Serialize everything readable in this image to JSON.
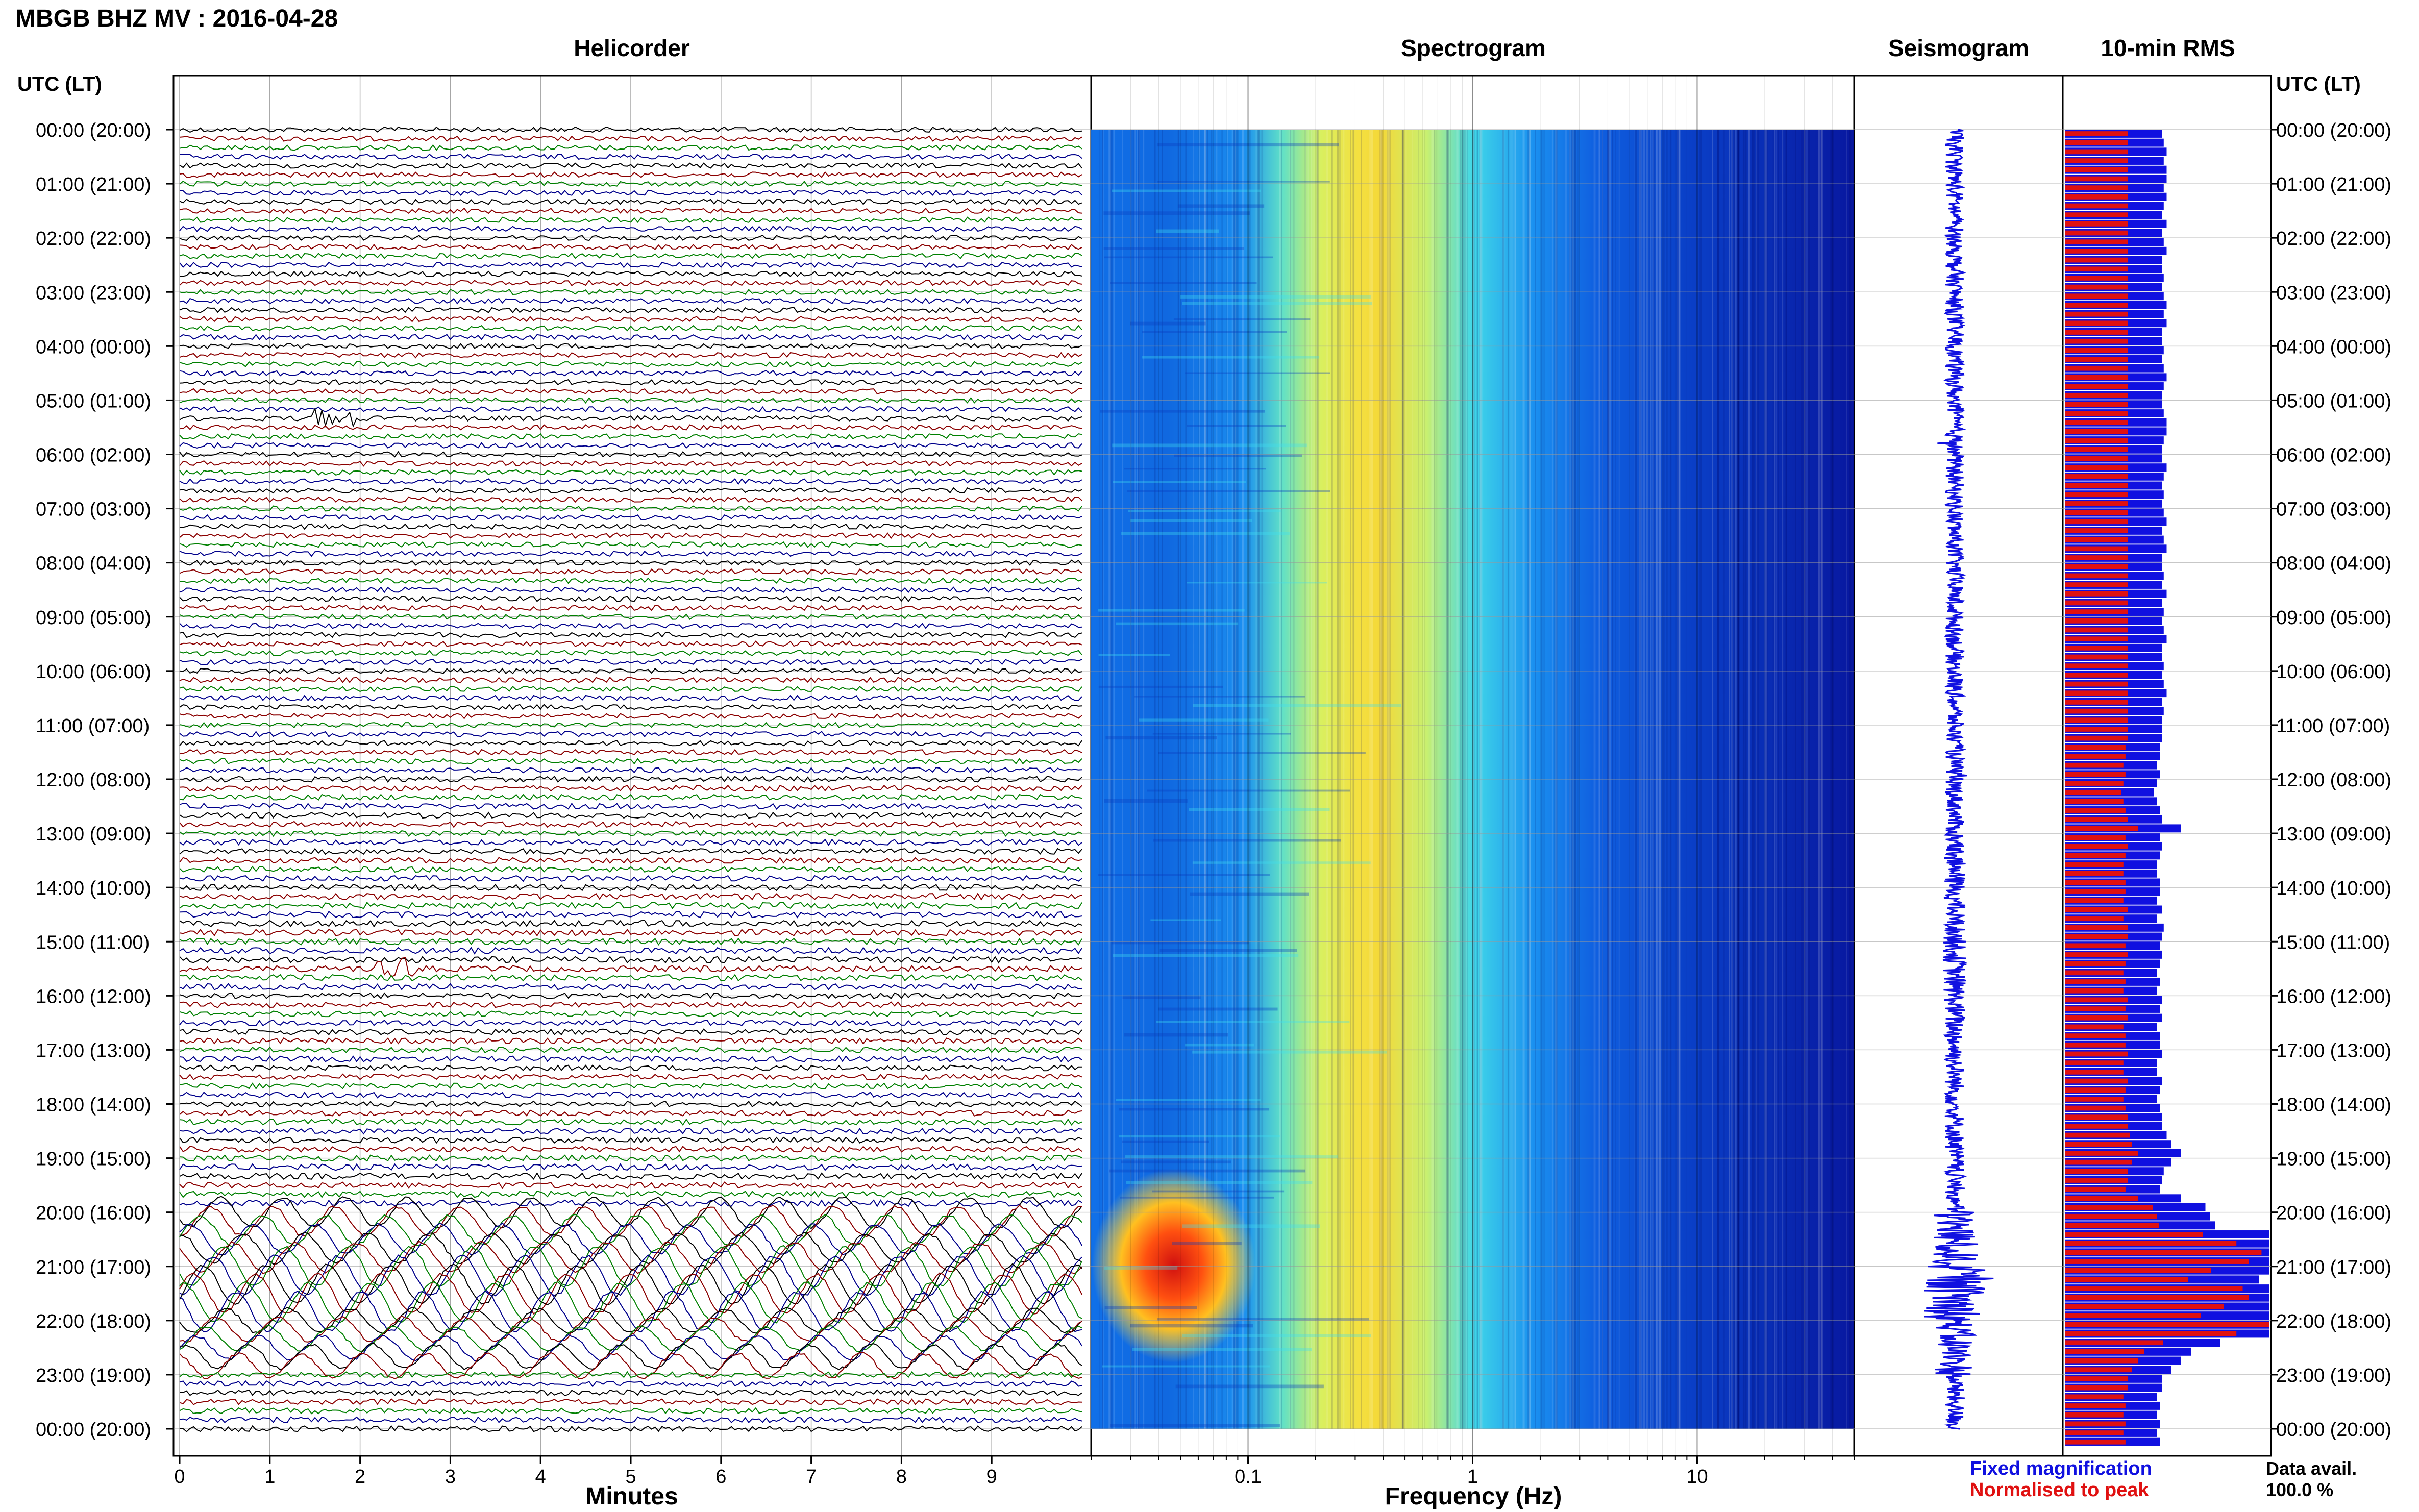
{
  "header": {
    "title": "MBGB BHZ MV : 2016-04-28",
    "time_axis_label": "UTC (LT)"
  },
  "panels": {
    "helicorder": "Helicorder",
    "spectrogram": "Spectrogram",
    "seismogram": "Seismogram",
    "rms": "10-min RMS"
  },
  "axes": {
    "helicorder_xlabel": "Minutes",
    "spectrogram_xlabel": "Frequency (Hz)"
  },
  "legend": {
    "fixed": "Fixed magnification",
    "normalised": "Normalised to peak",
    "fixed_color": "#1010e0",
    "normalised_color": "#e01010"
  },
  "data_avail": {
    "label": "Data avail.",
    "value": "100.0 %"
  },
  "colors": {
    "trace_cycle": [
      "#000000",
      "#8b0000",
      "#008000",
      "#00008b"
    ],
    "seismogram": "#1010e0",
    "rms_fixed": "#1010e0",
    "rms_normalised": "#e01010",
    "grid": "#999999"
  },
  "chart_data": [
    {
      "type": "line",
      "panel": "helicorder",
      "title": "Helicorder",
      "xlabel": "Minutes",
      "x_ticks": [
        "0",
        "1",
        "2",
        "3",
        "4",
        "5",
        "6",
        "7",
        "8",
        "9"
      ],
      "xlim": [
        0,
        10
      ],
      "y_ticks": [
        "00:00 (20:00)",
        "01:00 (21:00)",
        "02:00 (22:00)",
        "03:00 (23:00)",
        "04:00 (00:00)",
        "05:00 (01:00)",
        "06:00 (02:00)",
        "07:00 (03:00)",
        "08:00 (04:00)",
        "09:00 (05:00)",
        "10:00 (06:00)",
        "11:00 (07:00)",
        "12:00 (08:00)",
        "13:00 (09:00)",
        "14:00 (10:00)",
        "15:00 (11:00)",
        "16:00 (12:00)",
        "17:00 (13:00)",
        "18:00 (14:00)",
        "19:00 (15:00)",
        "20:00 (16:00)",
        "21:00 (17:00)",
        "22:00 (18:00)",
        "23:00 (19:00)",
        "00:00 (20:00)"
      ],
      "rows_per_hour": 6,
      "hours": 24,
      "relative_amplitude": [
        1.0,
        1.0,
        1.0,
        1.0,
        1.0,
        1.0,
        1.0,
        1.0,
        1.0,
        1.0,
        1.0,
        1.0,
        1.1,
        1.1,
        1.2,
        1.2,
        1.1,
        1.1,
        1.1,
        1.2,
        3.2,
        4.2,
        2.6,
        1.1
      ],
      "events": [
        {
          "time": "05:20",
          "minute": 1.7
        },
        {
          "time": "15:30",
          "minute": 2.4
        }
      ]
    },
    {
      "type": "heatmap",
      "panel": "spectrogram",
      "title": "Spectrogram",
      "xlabel": "Frequency (Hz)",
      "x_scale": "log",
      "xlim": [
        0.02,
        50
      ],
      "x_ticks": [
        "0.1",
        "1",
        "10"
      ],
      "energy_peak_hz": 0.33,
      "band_hz": [
        0.15,
        1.0
      ],
      "strong_lowfreq_event": {
        "start": "20:00",
        "end": "22:00",
        "freq_hz": [
          0.02,
          0.08
        ]
      },
      "colormap": [
        "#00008f",
        "#0000ff",
        "#00ffff",
        "#ffff00",
        "#ff0000",
        "#800000"
      ]
    },
    {
      "type": "line",
      "panel": "seismogram",
      "title": "Seismogram",
      "relative_amplitude": [
        1.0,
        1.0,
        1.0,
        1.0,
        1.0,
        1.0,
        1.0,
        1.0,
        1.0,
        1.0,
        1.0,
        1.0,
        1.0,
        1.2,
        1.2,
        1.3,
        1.2,
        1.1,
        1.1,
        1.1,
        2.6,
        3.4,
        2.2,
        1.1
      ]
    },
    {
      "type": "bar",
      "panel": "rms",
      "title": "10-min RMS",
      "bars_per_hour": 6,
      "series": [
        {
          "name": "Fixed magnification",
          "color": "#1010e0",
          "values": [
            1.0,
            1.02,
            1.05,
            1.02,
            1.05,
            1.05,
            1.02,
            1.05,
            1.02,
            1.0,
            1.05,
            1.0,
            1.02,
            1.05,
            1.0,
            1.0,
            1.02,
            1.0,
            1.02,
            1.05,
            1.02,
            1.05,
            1.0,
            1.0,
            1.02,
            1.0,
            1.02,
            1.05,
            1.02,
            1.0,
            1.0,
            1.02,
            1.05,
            1.05,
            1.02,
            1.0,
            1.0,
            1.05,
            1.02,
            1.0,
            1.02,
            1.0,
            1.02,
            1.05,
            1.0,
            1.02,
            1.05,
            1.0,
            1.0,
            1.02,
            1.0,
            1.05,
            1.0,
            1.02,
            1.0,
            1.02,
            1.05,
            1.0,
            1.0,
            1.02,
            1.0,
            1.02,
            1.05,
            1.0,
            1.02,
            1.0,
            1.0,
            1.0,
            0.98,
            0.98,
            0.95,
            0.98,
            0.95,
            0.92,
            0.95,
            0.98,
            1.0,
            1.2,
            0.98,
            1.0,
            0.98,
            0.95,
            0.95,
            0.98,
            0.98,
            0.95,
            1.0,
            0.95,
            1.02,
            1.0,
            0.98,
            1.0,
            0.98,
            0.95,
            0.98,
            0.95,
            1.0,
            0.98,
            1.0,
            0.95,
            0.98,
            0.98,
            1.0,
            0.95,
            0.95,
            1.0,
            0.98,
            0.95,
            0.98,
            1.0,
            1.0,
            1.05,
            1.1,
            1.2,
            1.1,
            1.02,
            1.0,
            0.98,
            1.2,
            1.45,
            1.5,
            1.55,
            2.3,
            2.8,
            3.2,
            3.0,
            2.4,
            2.0,
            2.9,
            3.0,
            2.6,
            2.2,
            3.4,
            2.8,
            1.6,
            1.3,
            1.2,
            1.1,
            1.0,
            1.0,
            0.95,
            0.98,
            0.95,
            0.98,
            0.95,
            0.98
          ]
        },
        {
          "name": "Normalised to peak",
          "color": "#e01010",
          "values": [
            0.3,
            0.3,
            0.3,
            0.3,
            0.3,
            0.3,
            0.3,
            0.3,
            0.3,
            0.3,
            0.3,
            0.3,
            0.3,
            0.3,
            0.3,
            0.3,
            0.3,
            0.3,
            0.3,
            0.3,
            0.3,
            0.3,
            0.3,
            0.3,
            0.3,
            0.3,
            0.3,
            0.3,
            0.3,
            0.3,
            0.3,
            0.3,
            0.3,
            0.3,
            0.3,
            0.3,
            0.3,
            0.3,
            0.3,
            0.3,
            0.3,
            0.3,
            0.3,
            0.3,
            0.3,
            0.3,
            0.3,
            0.3,
            0.3,
            0.3,
            0.3,
            0.3,
            0.3,
            0.3,
            0.3,
            0.3,
            0.3,
            0.3,
            0.3,
            0.3,
            0.3,
            0.3,
            0.3,
            0.3,
            0.3,
            0.3,
            0.3,
            0.3,
            0.29,
            0.29,
            0.28,
            0.29,
            0.28,
            0.27,
            0.28,
            0.29,
            0.3,
            0.35,
            0.29,
            0.3,
            0.29,
            0.28,
            0.28,
            0.29,
            0.29,
            0.28,
            0.3,
            0.28,
            0.3,
            0.3,
            0.29,
            0.3,
            0.29,
            0.28,
            0.29,
            0.28,
            0.3,
            0.29,
            0.3,
            0.28,
            0.29,
            0.29,
            0.3,
            0.28,
            0.28,
            0.3,
            0.29,
            0.28,
            0.29,
            0.3,
            0.3,
            0.31,
            0.32,
            0.35,
            0.32,
            0.3,
            0.3,
            0.29,
            0.35,
            0.42,
            0.44,
            0.45,
            0.66,
            0.82,
            0.94,
            0.88,
            0.7,
            0.59,
            0.85,
            0.88,
            0.76,
            0.65,
            1.0,
            0.82,
            0.47,
            0.38,
            0.35,
            0.32,
            0.3,
            0.3,
            0.28,
            0.29,
            0.28,
            0.29,
            0.28,
            0.29
          ]
        }
      ]
    }
  ]
}
